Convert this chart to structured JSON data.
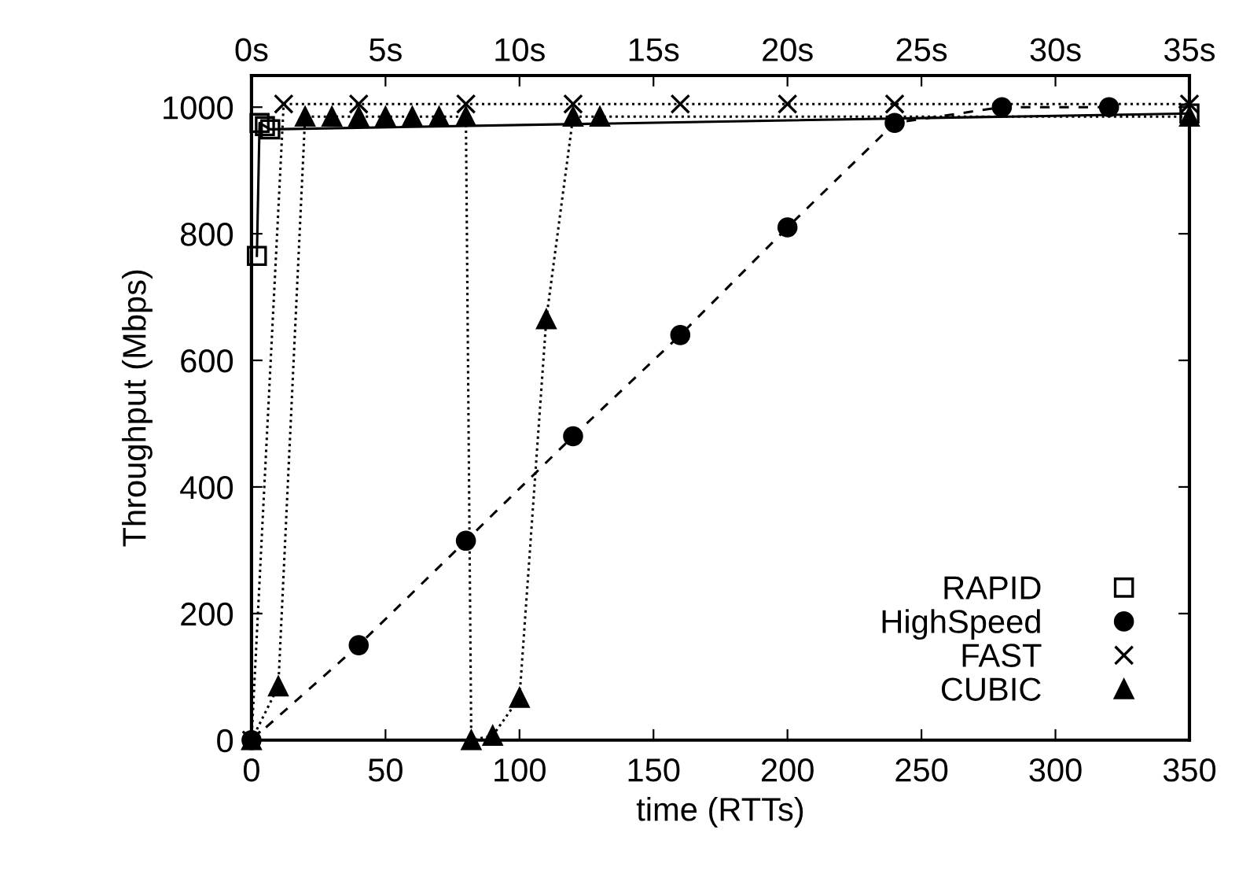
{
  "chart_data": {
    "type": "line",
    "xlabel": "time (RTTs)",
    "ylabel": "Throughput (Mbps)",
    "xlim": [
      0,
      350
    ],
    "xticks": [
      0,
      50,
      100,
      150,
      200,
      250,
      300,
      350
    ],
    "ylim": [
      0,
      1050
    ],
    "yticks": [
      0,
      200,
      400,
      600,
      800,
      1000
    ],
    "x2lim": [
      0,
      35
    ],
    "x2ticks": [
      {
        "value": 0,
        "label": "0s"
      },
      {
        "value": 5,
        "label": "5s"
      },
      {
        "value": 10,
        "label": "10s"
      },
      {
        "value": 15,
        "label": "15s"
      },
      {
        "value": 20,
        "label": "20s"
      },
      {
        "value": 25,
        "label": "25s"
      },
      {
        "value": 30,
        "label": "30s"
      },
      {
        "value": 35,
        "label": "35s"
      }
    ],
    "grid": false,
    "legend": "bottom right",
    "series": [
      {
        "name": "RAPID",
        "color": "#000000",
        "marker": "square",
        "line_style": "solid",
        "x": [
          2,
          3,
          5,
          7,
          350
        ],
        "values": [
          765,
          975,
          970,
          965,
          990
        ]
      },
      {
        "name": "HighSpeed",
        "color": "#000000",
        "marker": "circle",
        "line_style": "dashed",
        "x": [
          0,
          40,
          80,
          120,
          160,
          200,
          240,
          280,
          320
        ],
        "values": [
          0,
          150,
          315,
          480,
          640,
          810,
          975,
          1000,
          1000
        ]
      },
      {
        "name": "FAST",
        "color": "#000000",
        "marker": "cross",
        "line_style": "dotted",
        "x": [
          0,
          12,
          40,
          80,
          120,
          160,
          200,
          240,
          350
        ],
        "values": [
          0,
          1005,
          1005,
          1005,
          1005,
          1005,
          1005,
          1005,
          1005
        ]
      },
      {
        "name": "CUBIC",
        "color": "#000000",
        "marker": "triangle",
        "line_style": "dotted",
        "x": [
          0,
          10,
          20,
          30,
          40,
          50,
          60,
          70,
          80,
          82,
          90,
          100,
          110,
          120,
          130,
          350
        ],
        "values": [
          0,
          85,
          985,
          985,
          985,
          985,
          985,
          985,
          985,
          0,
          7,
          67,
          665,
          985,
          985,
          985
        ]
      }
    ]
  }
}
